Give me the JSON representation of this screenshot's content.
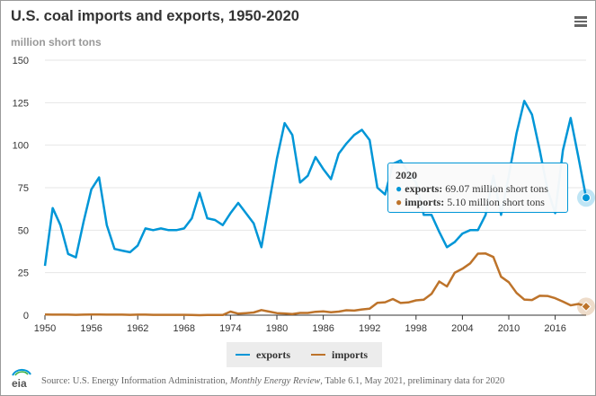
{
  "title": "U.S. coal imports and exports, 1950-2020",
  "subtitle": "million short tons",
  "menu_icon": "hamburger-menu-icon",
  "tooltip": {
    "year": "2020",
    "exports_label": "exports:",
    "exports_value": "69.07 million short tons",
    "imports_label": "imports:",
    "imports_value": "5.10 million short tons"
  },
  "legend": {
    "exports": "exports",
    "imports": "imports"
  },
  "source": {
    "prefix": "Source: U.S. Energy Information Administration, ",
    "publication": "Monthly Energy Review",
    "suffix": ", Table 6.1, May 2021, preliminary data for 2020"
  },
  "logo_text": "eia",
  "colors": {
    "exports": "#0096d7",
    "imports": "#bd732a",
    "grid": "#e6e6e6",
    "axis": "#333333"
  },
  "chart_data": {
    "type": "line",
    "title": "U.S. coal imports and exports, 1950-2020",
    "ylabel": "million short tons",
    "xlabel": "",
    "ylim": [
      0,
      150
    ],
    "xlim": [
      1950,
      2020
    ],
    "yticks": [
      0,
      25,
      50,
      75,
      100,
      125,
      150
    ],
    "xticks": [
      1950,
      1956,
      1962,
      1968,
      1974,
      1980,
      1986,
      1992,
      1998,
      2004,
      2010,
      2016
    ],
    "x_start": 1950,
    "series": [
      {
        "name": "exports",
        "values": [
          29,
          63,
          53,
          36,
          34,
          55,
          74,
          81,
          53,
          39,
          38,
          37,
          41,
          51,
          50,
          51,
          50,
          50,
          51,
          57,
          72,
          57,
          56,
          53,
          60,
          66,
          60,
          54,
          40,
          66,
          92,
          113,
          106,
          78,
          82,
          93,
          86,
          80,
          95,
          101,
          106,
          109,
          103,
          75,
          71,
          89,
          91,
          84,
          78,
          59,
          59,
          49,
          40,
          43,
          48,
          50,
          50,
          59,
          82,
          59,
          82,
          107,
          126,
          118,
          97,
          74,
          60,
          97,
          116,
          93,
          69.07
        ]
      },
      {
        "name": "imports",
        "values": [
          0.4,
          0.3,
          0.3,
          0.3,
          0.2,
          0.3,
          0.4,
          0.4,
          0.3,
          0.3,
          0.3,
          0.2,
          0.3,
          0.3,
          0.2,
          0.2,
          0.2,
          0.2,
          0.2,
          0.1,
          0.0,
          0.1,
          0.1,
          0.1,
          2.1,
          0.9,
          1.2,
          1.6,
          3.0,
          2.1,
          1.2,
          1.0,
          0.7,
          1.3,
          1.3,
          2.0,
          2.2,
          1.7,
          2.1,
          2.9,
          2.7,
          3.4,
          3.8,
          7.3,
          7.6,
          9.5,
          7.2,
          7.5,
          8.7,
          9.1,
          12.5,
          19.8,
          16.9,
          25.0,
          27.3,
          30.5,
          36.2,
          36.3,
          34.2,
          22.6,
          19.4,
          13.1,
          9.2,
          8.9,
          11.4,
          11.3,
          10.0,
          8.0,
          5.8,
          6.6,
          5.1
        ]
      }
    ],
    "highlight": {
      "year": 2020,
      "exports": 69.07,
      "imports": 5.1
    },
    "legend_position": "bottom-center"
  }
}
